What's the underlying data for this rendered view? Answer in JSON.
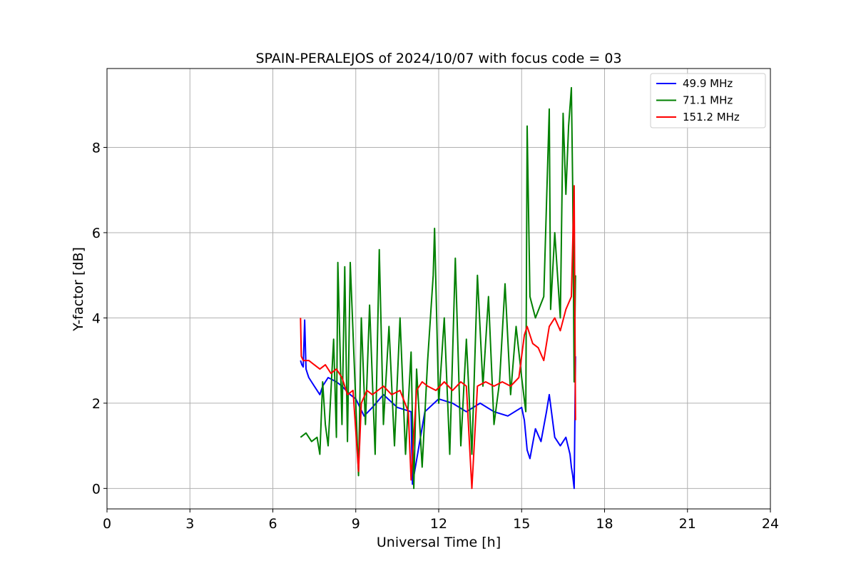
{
  "chart_data": {
    "type": "line",
    "title": "SPAIN-PERALEJOS of 2024/10/07 with focus code = 03",
    "xlabel": "Universal Time [h]",
    "ylabel": "Y-factor [dB]",
    "xlim": [
      0,
      24
    ],
    "ylim": [
      -0.48,
      9.85
    ],
    "xticks": [
      0,
      3,
      6,
      9,
      12,
      15,
      18,
      21,
      24
    ],
    "xtick_labels": [
      "0",
      "3",
      "6",
      "9",
      "12",
      "15",
      "18",
      "21",
      "24"
    ],
    "yticks": [
      0,
      2,
      4,
      6,
      8
    ],
    "ytick_labels": [
      "0",
      "2",
      "4",
      "6",
      "8"
    ],
    "grid": true,
    "legend_position": "top-right",
    "series": [
      {
        "name": "  49.9 MHz",
        "color": "#0000ff",
        "x": [
          7.0,
          7.05,
          7.1,
          7.15,
          7.2,
          7.25,
          7.3,
          7.5,
          7.7,
          7.8,
          8.0,
          8.3,
          8.5,
          8.8,
          9.0,
          9.3,
          9.6,
          10.0,
          10.5,
          11.0,
          11.05,
          11.5,
          12.0,
          12.5,
          13.0,
          13.5,
          14.0,
          14.5,
          15.0,
          15.1,
          15.2,
          15.3,
          15.5,
          15.7,
          15.9,
          16.0,
          16.2,
          16.4,
          16.6,
          16.75,
          16.8,
          16.85,
          16.9,
          16.95
        ],
        "y": [
          3.0,
          2.9,
          2.85,
          3.95,
          2.8,
          2.7,
          2.6,
          2.4,
          2.2,
          2.4,
          2.6,
          2.5,
          2.4,
          2.2,
          2.1,
          1.7,
          1.9,
          2.2,
          1.9,
          1.8,
          0.1,
          1.8,
          2.1,
          2.0,
          1.8,
          2.0,
          1.8,
          1.7,
          1.9,
          1.6,
          0.9,
          0.7,
          1.4,
          1.1,
          1.8,
          2.2,
          1.2,
          1.0,
          1.2,
          0.8,
          0.5,
          0.3,
          0.0,
          3.1
        ]
      },
      {
        "name": "  71.1 MHz",
        "color": "#008000",
        "x": [
          7.0,
          7.2,
          7.4,
          7.6,
          7.7,
          7.8,
          7.9,
          8.0,
          8.2,
          8.3,
          8.35,
          8.5,
          8.6,
          8.7,
          8.8,
          9.0,
          9.1,
          9.2,
          9.35,
          9.5,
          9.7,
          9.85,
          10.0,
          10.2,
          10.4,
          10.6,
          10.8,
          11.0,
          11.1,
          11.2,
          11.4,
          11.6,
          11.8,
          11.85,
          12.0,
          12.2,
          12.4,
          12.6,
          12.8,
          13.0,
          13.2,
          13.4,
          13.6,
          13.8,
          14.0,
          14.2,
          14.4,
          14.6,
          14.8,
          15.0,
          15.15,
          15.2,
          15.3,
          15.5,
          15.8,
          16.0,
          16.05,
          16.2,
          16.4,
          16.5,
          16.6,
          16.7,
          16.8,
          16.85,
          16.9,
          16.95
        ],
        "y": [
          1.2,
          1.3,
          1.1,
          1.2,
          0.8,
          2.5,
          1.5,
          1.0,
          3.5,
          1.2,
          5.3,
          1.5,
          5.2,
          1.1,
          5.3,
          2.0,
          0.3,
          4.0,
          1.5,
          4.3,
          0.8,
          5.6,
          1.5,
          3.8,
          1.0,
          4.0,
          0.8,
          3.2,
          0.0,
          2.8,
          0.5,
          3.0,
          5.0,
          6.1,
          2.0,
          4.0,
          0.8,
          5.4,
          1.0,
          3.5,
          0.8,
          5.0,
          2.4,
          4.5,
          1.5,
          2.5,
          4.8,
          2.2,
          3.8,
          2.6,
          1.8,
          8.5,
          4.5,
          4.0,
          4.5,
          8.9,
          4.2,
          6.0,
          4.0,
          8.8,
          6.9,
          8.5,
          9.4,
          7.0,
          2.5,
          5.0
        ]
      },
      {
        "name": " 151.2 MHz",
        "color": "#ff0000",
        "x": [
          7.0,
          7.03,
          7.1,
          7.3,
          7.5,
          7.7,
          7.9,
          8.1,
          8.3,
          8.5,
          8.7,
          8.9,
          9.1,
          9.2,
          9.4,
          9.6,
          9.8,
          10.0,
          10.3,
          10.6,
          10.9,
          11.0,
          11.2,
          11.4,
          11.6,
          11.9,
          12.2,
          12.5,
          12.8,
          13.0,
          13.2,
          13.4,
          13.7,
          14.0,
          14.3,
          14.6,
          14.9,
          15.1,
          15.2,
          15.4,
          15.6,
          15.8,
          16.0,
          16.2,
          16.4,
          16.6,
          16.8,
          16.9,
          16.95
        ],
        "y": [
          4.0,
          3.1,
          3.0,
          3.0,
          2.9,
          2.8,
          2.9,
          2.7,
          2.8,
          2.6,
          2.2,
          2.3,
          0.4,
          2.0,
          2.3,
          2.2,
          2.3,
          2.4,
          2.2,
          2.3,
          1.8,
          0.2,
          2.3,
          2.5,
          2.4,
          2.3,
          2.5,
          2.3,
          2.5,
          2.4,
          0.0,
          2.4,
          2.5,
          2.4,
          2.5,
          2.4,
          2.6,
          3.6,
          3.8,
          3.4,
          3.3,
          3.0,
          3.8,
          4.0,
          3.7,
          4.2,
          4.5,
          7.1,
          1.6
        ]
      }
    ]
  }
}
